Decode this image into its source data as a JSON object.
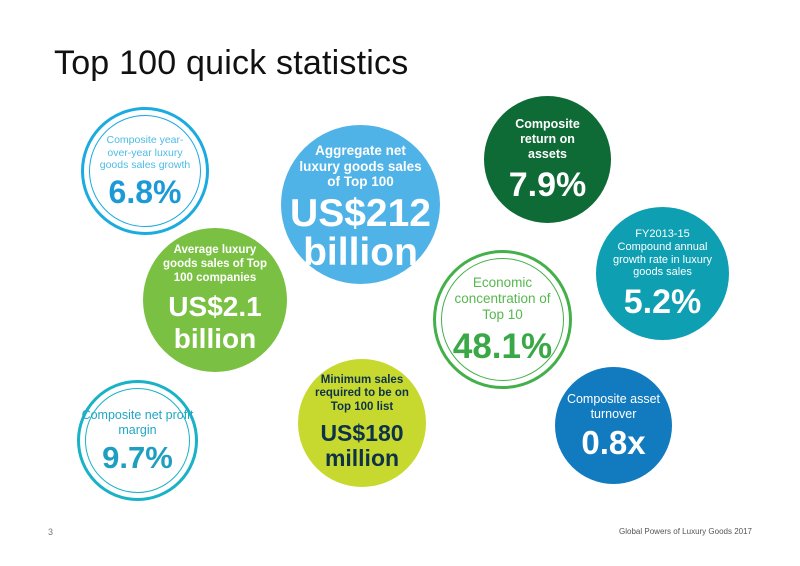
{
  "title": "Top 100 quick statistics",
  "stats": [
    {
      "label": "Composite year-over-year luxury goods sales growth",
      "value": "6.8%",
      "color": "#1aabe0",
      "style": "outline"
    },
    {
      "label": "Aggregate net luxury goods sales of Top 100",
      "value": "US$212 billion",
      "color": "#4fb3e8",
      "style": "filled"
    },
    {
      "label": "Composite return on assets",
      "value": "7.9%",
      "color": "#0e6b36",
      "style": "filled"
    },
    {
      "label": "Average luxury goods sales of Top 100 companies",
      "value": "US$2.1 billion",
      "color": "#7ac143",
      "style": "filled"
    },
    {
      "label": "FY2013-15 Compound annual growth rate in luxury goods sales",
      "value": "5.2%",
      "color": "#0e9fb2",
      "style": "filled"
    },
    {
      "label": "Economic concentration of Top 10",
      "value": "48.1%",
      "color": "#43b049",
      "style": "outline"
    },
    {
      "label": "Composite net profit margin",
      "value": "9.7%",
      "color": "#19b2c6",
      "style": "outline"
    },
    {
      "label": "Minimum sales required to be on Top 100 list",
      "value": "US$180 million",
      "color": "#c7d92e",
      "style": "filled"
    },
    {
      "label": "Composite asset turnover",
      "value": "0.8x",
      "color": "#127bc0",
      "style": "filled"
    }
  ],
  "footer": {
    "page_number": "3",
    "publication": "Global Powers of Luxury Goods 2017"
  }
}
